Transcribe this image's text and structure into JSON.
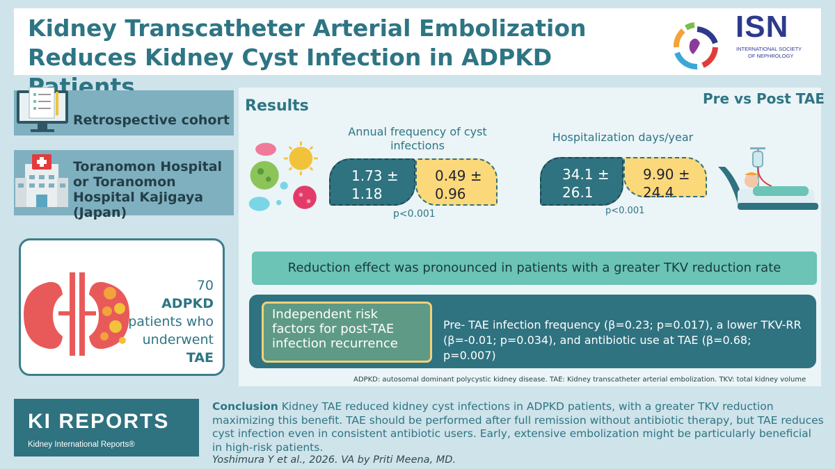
{
  "header": {
    "title_line1": "Kidney Transcatheter Arterial Embolization",
    "title_line2": "Reduces Kidney Cyst Infection in ADPKD Patients",
    "logo_text": "ISN",
    "logo_sub1": "INTERNATIONAL SOCIETY",
    "logo_sub2": "OF NEPHROLOGY"
  },
  "left": {
    "cohort": "Retrospective cohort",
    "hospital": "Toranomon Hospital or Toranomon Hospital Kajigaya (Japan)",
    "patients_count": "70",
    "patients_bold": "ADPKD",
    "patients_desc": "patients who underwent",
    "patients_tae": "TAE"
  },
  "results": {
    "title": "Results",
    "comparison": "Pre vs Post TAE",
    "annual": {
      "title": "Annual frequency of cyst infections",
      "pre": "1.73 ± 1.18",
      "post": "0.49 ± 0.96",
      "p": "p<0.001"
    },
    "hospitalization": {
      "title": "Hospitalization days/year",
      "pre": "34.1 ± 26.1",
      "post": "9.90 ± 24.4",
      "p": "p<0.001"
    },
    "reduction": "Reduction effect was pronounced in patients with a greater TKV reduction rate",
    "risk_label": "Independent risk factors for post-TAE infection recurrence",
    "risk_text": "Pre- TAE infection frequency (β=0.23; p=0.017), a lower TKV-RR (β=-0.01; p=0.034), and antibiotic use at TAE (β=0.68; p=0.007)",
    "footnote": "ADPKD: autosomal dominant polycystic kidney disease. TAE:  Kidney transcatheter arterial embolization. TKV: total kidney volume"
  },
  "footer": {
    "ki_title": "KI REPORTS",
    "ki_sub": "Kidney International Reports®",
    "conclusion_label": "Conclusion",
    "conclusion_text": " Kidney TAE reduced kidney cyst infections in ADPKD patients, with a greater TKV reduction maximizing this benefit. TAE should be performed after full remission without antibiotic therapy, but TAE reduces cyst infection even in consistent antibiotic users. Early, extensive embolization might be particularly beneficial in high-risk patients.",
    "citation": "Yoshimura Y et al., 2026. VA by Priti Meena, MD."
  },
  "colors": {
    "teal": "#2f7280",
    "title_teal": "#2e7584",
    "yellow": "#fbd97a",
    "mint": "#6bc4b5",
    "background": "#cfe3ea"
  }
}
